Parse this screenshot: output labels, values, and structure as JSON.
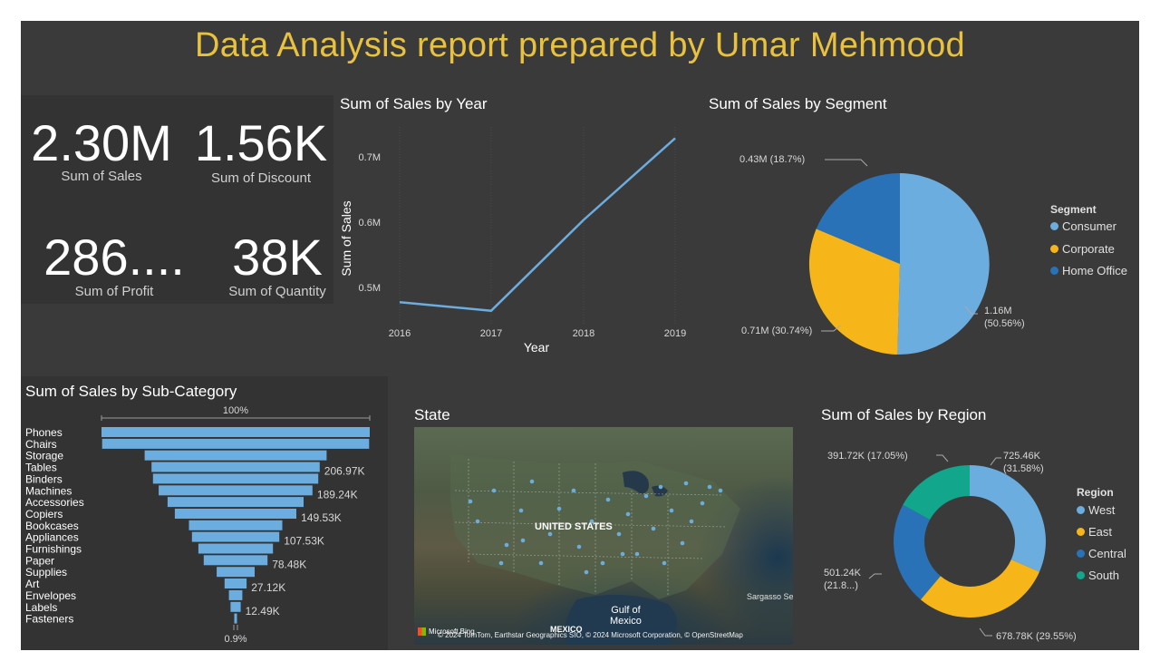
{
  "title": "Data Analysis report prepared by Umar Mehmood",
  "kpis": [
    {
      "value": "2.30M",
      "label": "Sum of Sales"
    },
    {
      "value": "1.56K",
      "label": "Sum of Discount"
    },
    {
      "value": "286....",
      "label": "Sum of Profit"
    },
    {
      "value": "38K",
      "label": "Sum of Quantity"
    }
  ],
  "colors": {
    "background": "#3a3a3a",
    "title": "#e8c23f",
    "blue_light": "#6cade0",
    "yellow": "#f6b61a",
    "blue_dark": "#2a72b8",
    "teal": "#12a68c"
  },
  "line_chart": {
    "title": "Sum of Sales by Year",
    "xlabel": "Year",
    "ylabel": "Sum of Sales",
    "y_ticks": [
      "0.7M",
      "0.6M",
      "0.5M"
    ],
    "x_ticks": [
      "2016",
      "2017",
      "2018",
      "2019"
    ]
  },
  "pie_chart": {
    "title": "Sum of Sales by Segment",
    "legend_title": "Segment",
    "legend": [
      "Consumer",
      "Corporate",
      "Home Office"
    ],
    "labels": {
      "home_office": "0.43M (18.7%)",
      "corporate": "0.71M (30.74%)",
      "consumer_1": "1.16M",
      "consumer_2": "(50.56%)"
    }
  },
  "funnel_chart": {
    "title": "Sum of Sales by Sub-Category",
    "top_label": "100%",
    "bottom_label": "0.9%",
    "categories": [
      "Phones",
      "Chairs",
      "Storage",
      "Tables",
      "Binders",
      "Machines",
      "Accessories",
      "Copiers",
      "Bookcases",
      "Appliances",
      "Furnishings",
      "Paper",
      "Supplies",
      "Art",
      "Envelopes",
      "Labels",
      "Fasteners"
    ],
    "data_labels": [
      "",
      "",
      "",
      "206.97K",
      "",
      "189.24K",
      "",
      "149.53K",
      "",
      "107.53K",
      "",
      "78.48K",
      "",
      "27.12K",
      "",
      "12.49K",
      ""
    ]
  },
  "map": {
    "title": "State",
    "country_label": "UNITED STATES",
    "gulf_label_1": "Gulf of",
    "gulf_label_2": "Mexico",
    "mexico_label": "MEXICO",
    "sea_label": "Sargasso Sea",
    "attribution": "© 2024 TomTom, Earthstar Geographics SIO, © 2024 Microsoft Corporation, © OpenStreetMap",
    "logo": "Microsoft Bing"
  },
  "donut_chart": {
    "title": "Sum of Sales by Region",
    "legend_title": "Region",
    "legend": [
      "West",
      "East",
      "Central",
      "South"
    ],
    "labels": {
      "south": "391.72K (17.05%)",
      "west_1": "725.46K",
      "west_2": "(31.58%)",
      "central_1": "501.24K",
      "central_2": "(21.8...)",
      "east": "678.78K (29.55%)"
    }
  },
  "chart_data": [
    {
      "type": "line",
      "title": "Sum of Sales by Year",
      "xlabel": "Year",
      "ylabel": "Sum of Sales",
      "x": [
        "2016",
        "2017",
        "2018",
        "2019"
      ],
      "values": [
        484000,
        471000,
        609000,
        733000
      ],
      "ylim": [
        0.45,
        0.75
      ],
      "grid": false
    },
    {
      "type": "pie",
      "title": "Sum of Sales by Segment",
      "categories": [
        "Consumer",
        "Corporate",
        "Home Office"
      ],
      "values": [
        1.16,
        0.71,
        0.43
      ],
      "percent": [
        50.56,
        30.74,
        18.7
      ],
      "legend_position": "right"
    },
    {
      "type": "bar",
      "title": "Sum of Sales by Sub-Category",
      "categories": [
        "Phones",
        "Chairs",
        "Storage",
        "Tables",
        "Binders",
        "Machines",
        "Accessories",
        "Copiers",
        "Bookcases",
        "Appliances",
        "Furnishings",
        "Paper",
        "Supplies",
        "Art",
        "Envelopes",
        "Labels",
        "Fasteners"
      ],
      "values": [
        330.01,
        328.45,
        223.84,
        206.97,
        203.41,
        189.24,
        167.38,
        149.53,
        114.88,
        107.53,
        91.71,
        78.48,
        46.67,
        27.12,
        16.48,
        12.49,
        3.02
      ]
    },
    {
      "type": "pie",
      "title": "Sum of Sales by Region",
      "categories": [
        "West",
        "East",
        "Central",
        "South"
      ],
      "values": [
        725.46,
        678.78,
        501.24,
        391.72
      ],
      "percent": [
        31.58,
        29.55,
        21.8,
        17.05
      ],
      "legend_position": "right"
    }
  ]
}
